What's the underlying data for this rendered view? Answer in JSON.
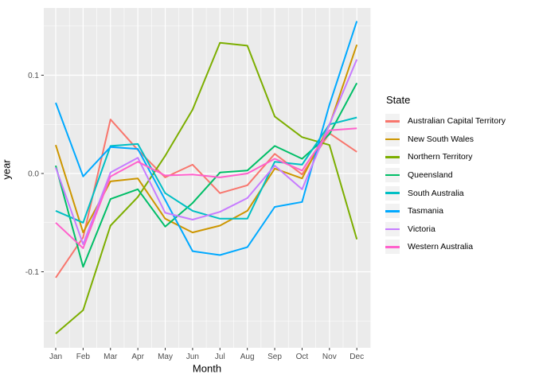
{
  "chart_data": {
    "type": "line",
    "title": "",
    "xlabel": "Month",
    "ylabel": "year",
    "legend_title": "State",
    "legend_position": "right",
    "grid": "on",
    "panel_background": "#EBEBEB",
    "gridline_color": "#FFFFFF",
    "tick_text_color": "#4D4D4D",
    "categories": [
      "Jan",
      "Feb",
      "Mar",
      "Apr",
      "May",
      "Jun",
      "Jul",
      "Aug",
      "Sep",
      "Oct",
      "Nov",
      "Dec"
    ],
    "y_tick_labels": [
      "0.1",
      "0.0",
      "-0.1"
    ],
    "y_tick_values": [
      0.1,
      0.0,
      -0.1
    ],
    "y_minor_values": [
      0.15,
      0.05,
      -0.05,
      -0.15
    ],
    "ylim": [
      -0.177,
      0.168
    ],
    "series": [
      {
        "name": "Australian Capital Territory",
        "color": "#F8766D",
        "values": [
          -0.106,
          -0.065,
          0.055,
          0.024,
          -0.004,
          0.009,
          -0.02,
          -0.012,
          0.02,
          -0.001,
          0.041,
          0.022
        ]
      },
      {
        "name": "New South Wales",
        "color": "#CD9600",
        "values": [
          0.029,
          -0.06,
          -0.008,
          -0.005,
          -0.046,
          -0.06,
          -0.053,
          -0.038,
          0.005,
          -0.005,
          0.049,
          0.131
        ]
      },
      {
        "name": "Northern Territory",
        "color": "#7CAE00",
        "values": [
          -0.163,
          -0.139,
          -0.053,
          -0.024,
          0.018,
          0.065,
          0.133,
          0.13,
          0.058,
          0.037,
          0.029,
          -0.067
        ]
      },
      {
        "name": "Queensland",
        "color": "#00BE67",
        "values": [
          0.008,
          -0.095,
          -0.026,
          -0.016,
          -0.054,
          -0.03,
          0.001,
          0.003,
          0.028,
          0.015,
          0.04,
          0.092
        ]
      },
      {
        "name": "South Australia",
        "color": "#00BFC4",
        "values": [
          -0.038,
          -0.05,
          0.028,
          0.03,
          -0.02,
          -0.038,
          -0.046,
          -0.046,
          0.012,
          0.009,
          0.05,
          0.057
        ]
      },
      {
        "name": "Tasmania",
        "color": "#00A9FF",
        "values": [
          0.072,
          -0.003,
          0.027,
          0.025,
          -0.027,
          -0.079,
          -0.083,
          -0.075,
          -0.034,
          -0.029,
          0.07,
          0.155
        ]
      },
      {
        "name": "Victoria",
        "color": "#C77CFF",
        "values": [
          0.006,
          -0.072,
          0.001,
          0.016,
          -0.04,
          -0.047,
          -0.039,
          -0.025,
          0.008,
          -0.016,
          0.05,
          0.116
        ]
      },
      {
        "name": "Western Australia",
        "color": "#FF61CC",
        "values": [
          -0.05,
          -0.076,
          -0.003,
          0.012,
          -0.002,
          -0.001,
          -0.004,
          0.0,
          0.015,
          0.003,
          0.044,
          0.046
        ]
      }
    ]
  }
}
